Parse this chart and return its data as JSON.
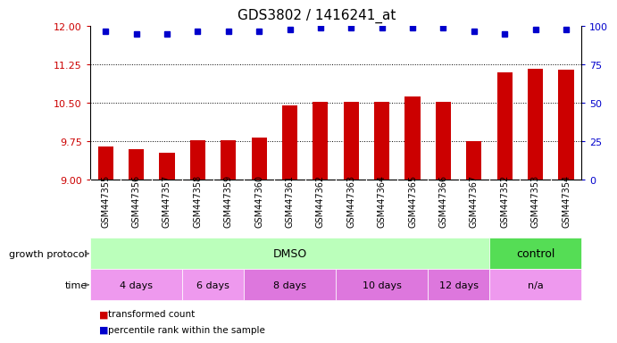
{
  "title": "GDS3802 / 1416241_at",
  "samples": [
    "GSM447355",
    "GSM447356",
    "GSM447357",
    "GSM447358",
    "GSM447359",
    "GSM447360",
    "GSM447361",
    "GSM447362",
    "GSM447363",
    "GSM447364",
    "GSM447365",
    "GSM447366",
    "GSM447367",
    "GSM447352",
    "GSM447353",
    "GSM447354"
  ],
  "bar_values": [
    9.65,
    9.6,
    9.53,
    9.78,
    9.77,
    9.83,
    10.45,
    10.53,
    10.53,
    10.52,
    10.63,
    10.52,
    9.75,
    11.1,
    11.17,
    11.15
  ],
  "dot_values": [
    97,
    95,
    95,
    97,
    97,
    97,
    98,
    99,
    99,
    99,
    99,
    99,
    97,
    95,
    98,
    98
  ],
  "ylim_left": [
    9.0,
    12.0
  ],
  "ylim_right": [
    0,
    100
  ],
  "yticks_left": [
    9.0,
    9.75,
    10.5,
    11.25,
    12.0
  ],
  "yticks_right": [
    0,
    25,
    50,
    75,
    100
  ],
  "hlines": [
    9.75,
    10.5,
    11.25
  ],
  "bar_color": "#cc0000",
  "dot_color": "#0000cc",
  "dmso_color": "#bbffbb",
  "control_color": "#55dd55",
  "time_color_alt": "#ee88ee",
  "time_color_main": "#dd66dd",
  "xtick_bg": "#d8d8d8",
  "legend_items": [
    {
      "label": "transformed count",
      "color": "#cc0000"
    },
    {
      "label": "percentile rank within the sample",
      "color": "#0000cc"
    }
  ],
  "growth_protocol_label": "growth protocol",
  "time_label": "time",
  "time_groups": [
    {
      "label": "4 days",
      "start": 0,
      "end": 2
    },
    {
      "label": "6 days",
      "start": 3,
      "end": 4
    },
    {
      "label": "8 days",
      "start": 5,
      "end": 7
    },
    {
      "label": "10 days",
      "start": 8,
      "end": 10
    },
    {
      "label": "12 days",
      "start": 11,
      "end": 12
    },
    {
      "label": "n/a",
      "start": 13,
      "end": 15
    }
  ]
}
